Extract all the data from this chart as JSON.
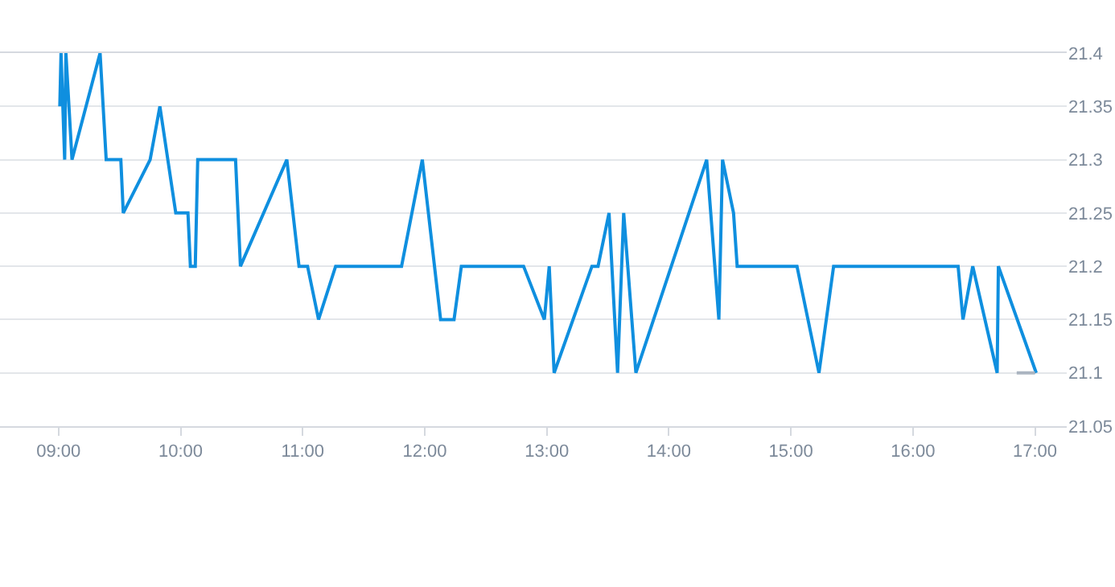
{
  "chart_data": {
    "type": "line",
    "grid": "y",
    "marker": "none",
    "line_style": "solid",
    "xlim": [
      8.52,
      17.26
    ],
    "ylim": [
      21.05,
      21.4
    ],
    "xticks": [
      {
        "value": 9,
        "label": "09:00"
      },
      {
        "value": 10,
        "label": "10:00"
      },
      {
        "value": 11,
        "label": "11:00"
      },
      {
        "value": 12,
        "label": "12:00"
      },
      {
        "value": 13,
        "label": "13:00"
      },
      {
        "value": 14,
        "label": "14:00"
      },
      {
        "value": 15,
        "label": "15:00"
      },
      {
        "value": 16,
        "label": "16:00"
      },
      {
        "value": 17,
        "label": "17:00"
      }
    ],
    "yticks": [
      21.05,
      21.1,
      21.15,
      21.2,
      21.25,
      21.3,
      21.35,
      21.4
    ],
    "series": [
      {
        "color": "#0f8fdf",
        "x": [
          9.01,
          9.02,
          9.05,
          9.06,
          9.11,
          9.34,
          9.39,
          9.51,
          9.53,
          9.75,
          9.83,
          9.96,
          10.06,
          10.08,
          10.12,
          10.14,
          10.45,
          10.49,
          10.87,
          10.97,
          11.04,
          11.13,
          11.27,
          11.81,
          11.98,
          12.13,
          12.24,
          12.3,
          12.81,
          12.98,
          13.02,
          13.06,
          13.37,
          13.42,
          13.51,
          13.58,
          13.63,
          13.73,
          14.31,
          14.41,
          14.44,
          14.53,
          14.56,
          15.05,
          15.23,
          15.35,
          16.37,
          16.41,
          16.49,
          16.69,
          16.7,
          17.01
        ],
        "values": [
          21.35,
          21.4,
          21.3,
          21.4,
          21.3,
          21.4,
          21.3,
          21.3,
          21.25,
          21.3,
          21.35,
          21.25,
          21.25,
          21.2,
          21.2,
          21.3,
          21.3,
          21.2,
          21.3,
          21.2,
          21.2,
          21.15,
          21.2,
          21.2,
          21.3,
          21.15,
          21.15,
          21.2,
          21.2,
          21.15,
          21.2,
          21.1,
          21.2,
          21.2,
          21.25,
          21.1,
          21.25,
          21.1,
          21.3,
          21.15,
          21.3,
          21.25,
          21.2,
          21.2,
          21.1,
          21.2,
          21.2,
          21.15,
          21.2,
          21.1,
          21.2,
          21.1
        ]
      },
      {
        "color": "#aab4c0",
        "x": [
          16.85,
          17.0
        ],
        "values": [
          21.1,
          21.1
        ]
      }
    ]
  }
}
